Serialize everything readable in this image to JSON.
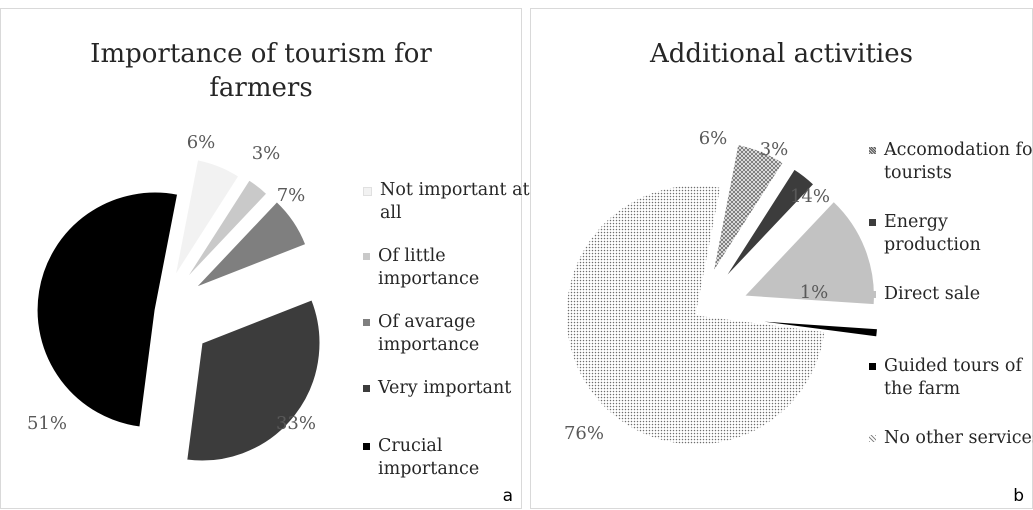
{
  "panels": {
    "a": {
      "tag": "a"
    },
    "b": {
      "tag": "b"
    }
  },
  "chart_data": [
    {
      "type": "pie",
      "title": "Importance of tourism for farmers",
      "start_angle_deg": 11,
      "slices": [
        {
          "label": "Not important at all",
          "value": 6,
          "display": "6%",
          "color": "#f2f2f2",
          "pattern": "solid"
        },
        {
          "label": "Of little importance",
          "value": 3,
          "display": "3%",
          "color": "#c9c9c9",
          "pattern": "solid"
        },
        {
          "label": "Of avarage importance",
          "value": 7,
          "display": "7%",
          "color": "#7f7f7f",
          "pattern": "solid"
        },
        {
          "label": "Very important",
          "value": 33,
          "display": "33%",
          "color": "#3c3c3c",
          "pattern": "solid"
        },
        {
          "label": "Crucial importance",
          "value": 51,
          "display": "51%",
          "color": "#000000",
          "pattern": "solid"
        }
      ],
      "legend_position": "right"
    },
    {
      "type": "pie",
      "title": "Additional activities",
      "start_angle_deg": 11,
      "slices": [
        {
          "label": "Accomodation for tourists",
          "value": 6,
          "display": "6%",
          "color": "#7a7a7a",
          "pattern": "dots"
        },
        {
          "label": "Energy production",
          "value": 3,
          "display": "3%",
          "color": "#3c3c3c",
          "pattern": "solid"
        },
        {
          "label": "Direct sale",
          "value": 14,
          "display": "14%",
          "color": "#c2c2c2",
          "pattern": "solid"
        },
        {
          "label": "Guided tours of the farm",
          "value": 1,
          "display": "1%",
          "color": "#000000",
          "pattern": "solid"
        },
        {
          "label": "No other services",
          "value": 76,
          "display": "76%",
          "color": "#9a9a9a",
          "pattern": "fine-dots"
        }
      ],
      "legend_position": "right"
    }
  ]
}
